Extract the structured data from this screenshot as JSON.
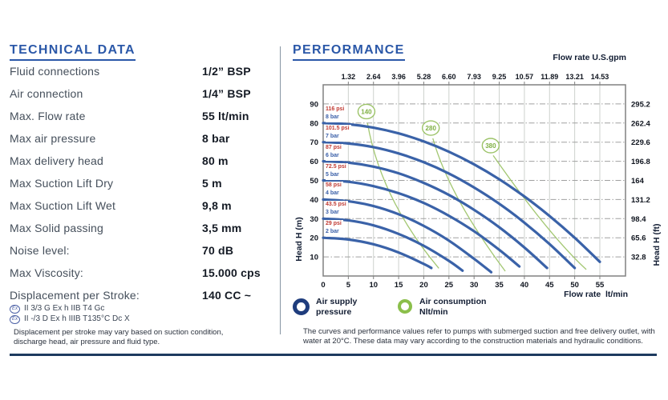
{
  "technical": {
    "title": "TECHNICAL DATA",
    "rows": [
      {
        "label": "Fluid connections",
        "value": "1/2” BSP"
      },
      {
        "label": "Air connection",
        "value": "1/4” BSP"
      },
      {
        "label": "Max. Flow rate",
        "value": "55 lt/min"
      },
      {
        "label": "Max air pressure",
        "value": "8 bar"
      },
      {
        "label": "Max delivery head",
        "value": "80 m"
      },
      {
        "label": "Max Suction Lift Dry",
        "value": "5 m"
      },
      {
        "label": "Max Suction Lift Wet",
        "value": "9,8 m"
      },
      {
        "label": "Max Solid passing",
        "value": "3,5 mm"
      },
      {
        "label": "Noise level:",
        "value": "70 dB"
      },
      {
        "label": "Max Viscosity:",
        "value": "15.000 cps"
      },
      {
        "label": "Displacement per Stroke:",
        "value": "140 CC ~"
      }
    ],
    "atex_lines": [
      {
        "symbol": "Ex",
        "text": "II 3/3 G Ex h IIB T4 Gc"
      },
      {
        "symbol": "Ex",
        "text": "II -/3 D Ex h IIIB T135°C Dc X"
      }
    ],
    "note_lines": [
      "Displacement per stroke may vary based on suction condition,",
      "discharge head, air pressure and fluid type."
    ]
  },
  "performance": {
    "title": "PERFORMANCE",
    "legend": [
      {
        "ring_color": "#1f3d7d",
        "lines": [
          "Air supply",
          "pressure"
        ]
      },
      {
        "ring_color": "#8bbf4b",
        "lines": [
          "Air consumption",
          "Nlt/min"
        ]
      }
    ],
    "note_lines": [
      "The curves and performance values refer to pumps with submerged suction and free delivery outlet, with",
      "water at 20°C. These data may vary according to the construction materials and hydraulic conditions."
    ]
  },
  "chart_data": {
    "type": "line",
    "title": "PERFORMANCE",
    "x_axis": {
      "title": "Flow rate  lt/min",
      "unit": "lt/min",
      "min": 0,
      "max": 60.1,
      "ticks": [
        0,
        5,
        10,
        15,
        20,
        25,
        30,
        35,
        40,
        45,
        50,
        55
      ]
    },
    "top_axis": {
      "title": "Flow rate U.S.gpm",
      "unit": "U.S.gpm",
      "tick_labels": [
        "1.32",
        "2.64",
        "3.96",
        "5.28",
        "6.60",
        "7.93",
        "9.25",
        "10.57",
        "11.89",
        "13.21",
        "14.53"
      ],
      "tick_positions": [
        5,
        10,
        15,
        20,
        25,
        30,
        35,
        40,
        45,
        50,
        55
      ]
    },
    "y_axis": {
      "title": "Head H (m)",
      "unit": "m",
      "min": 0,
      "max": 100,
      "ticks": [
        10,
        20,
        30,
        40,
        50,
        60,
        70,
        80,
        90
      ]
    },
    "right_axis": {
      "title": "Head H (ft)",
      "unit": "ft",
      "tick_labels": [
        "295.2",
        "262.4",
        "229.6",
        "196.8",
        "164",
        "131.2",
        "98.4",
        "65.6",
        "32.8"
      ],
      "tick_positions": [
        90,
        80,
        70,
        60,
        50,
        40,
        30,
        20,
        10
      ]
    },
    "series": [
      {
        "name": "8 bar",
        "psi_label": "116 psi",
        "bar_label": "8 bar",
        "points": [
          [
            0,
            80
          ],
          [
            5,
            79.4
          ],
          [
            10,
            77.6
          ],
          [
            15,
            74.6
          ],
          [
            20,
            70.4
          ],
          [
            25,
            65
          ],
          [
            30,
            58.4
          ],
          [
            35,
            50.6
          ],
          [
            40,
            41.6
          ],
          [
            45,
            31.4
          ],
          [
            50,
            20
          ],
          [
            55,
            7.4
          ]
        ]
      },
      {
        "name": "7 bar",
        "psi_label": "101.5 psi",
        "bar_label": "7 bar",
        "points": [
          [
            0,
            70
          ],
          [
            5,
            69.3
          ],
          [
            10,
            67.4
          ],
          [
            15,
            64.1
          ],
          [
            20,
            59.5
          ],
          [
            25,
            53.6
          ],
          [
            30,
            46.3
          ],
          [
            35,
            37.8
          ],
          [
            40,
            27.9
          ],
          [
            45,
            16.7
          ],
          [
            50,
            4.2
          ]
        ]
      },
      {
        "name": "6 bar",
        "psi_label": "87 psi",
        "bar_label": "6 bar",
        "points": [
          [
            0,
            60
          ],
          [
            5,
            59.3
          ],
          [
            10,
            57.2
          ],
          [
            15,
            53.7
          ],
          [
            20,
            48.7
          ],
          [
            25,
            42.4
          ],
          [
            30,
            34.6
          ],
          [
            35,
            25.5
          ],
          [
            40,
            14.9
          ],
          [
            44.5,
            4.2
          ]
        ]
      },
      {
        "name": "5 bar",
        "psi_label": "72.5 psi",
        "bar_label": "5 bar",
        "points": [
          [
            0,
            50
          ],
          [
            5,
            49.3
          ],
          [
            10,
            47
          ],
          [
            15,
            43.3
          ],
          [
            20,
            38.2
          ],
          [
            25,
            31.5
          ],
          [
            30,
            23.4
          ],
          [
            35,
            13.7
          ],
          [
            39,
            5
          ]
        ]
      },
      {
        "name": "4 bar",
        "psi_label": "58 psi",
        "bar_label": "4 bar",
        "points": [
          [
            0,
            40
          ],
          [
            5,
            39.1
          ],
          [
            10,
            36.6
          ],
          [
            15,
            32.3
          ],
          [
            20,
            26.2
          ],
          [
            25,
            18.5
          ],
          [
            30,
            9
          ],
          [
            33.4,
            2
          ]
        ]
      },
      {
        "name": "3 bar",
        "psi_label": "43.5 psi",
        "bar_label": "3 bar",
        "points": [
          [
            0,
            30
          ],
          [
            5,
            29.1
          ],
          [
            10,
            26.5
          ],
          [
            15,
            22
          ],
          [
            20,
            15.8
          ],
          [
            25,
            7.9
          ],
          [
            27.7,
            2.8
          ]
        ]
      },
      {
        "name": "2 bar",
        "psi_label": "29 psi",
        "bar_label": "2 bar",
        "points": [
          [
            0,
            20
          ],
          [
            5,
            19.1
          ],
          [
            10,
            16.6
          ],
          [
            15,
            12.3
          ],
          [
            20,
            6.3
          ],
          [
            21.5,
            4.2
          ]
        ]
      }
    ],
    "air_consumption_lines": [
      {
        "label": "140",
        "bubble": [
          8.6,
          86
        ],
        "from": [
          8.8,
          80
        ],
        "ctrl": [
          11.5,
          40
        ],
        "to": [
          23,
          4
        ]
      },
      {
        "label": "280",
        "bubble": [
          21.4,
          77.4
        ],
        "from": [
          21.8,
          72
        ],
        "ctrl": [
          25,
          42
        ],
        "to": [
          36.2,
          2.5
        ]
      },
      {
        "label": "380",
        "bubble": [
          33.3,
          68.2
        ],
        "from": [
          33.8,
          63
        ],
        "ctrl": [
          45,
          21
        ],
        "to": [
          52.3,
          3.4
        ]
      }
    ],
    "colors": {
      "pressure_curve": "#3a62a8",
      "air_line": "#a3c772",
      "bubble_stroke": "#9cc368",
      "bubble_text": "#7fb043",
      "psi_text": "#c03a32",
      "bar_text": "#3a5fa8",
      "grid_v": "#cdd2cd",
      "grid_h": "#a0a0a0",
      "border": "#808080",
      "tick_text": "#10151f",
      "title_blue": "#2b58a8",
      "divider_navy": "#1d3a5f"
    }
  }
}
